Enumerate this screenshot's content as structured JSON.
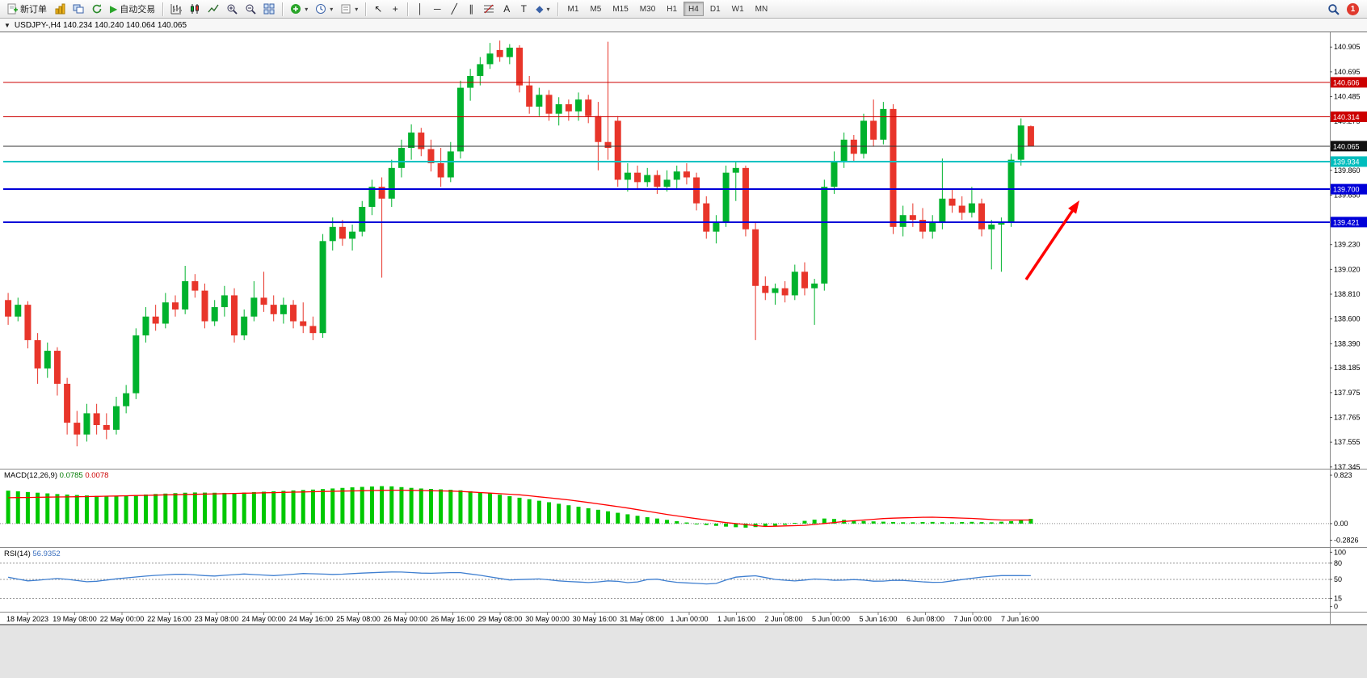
{
  "toolbar": {
    "new_order_label": "新订单",
    "auto_trading_label": "自动交易",
    "timeframes": [
      "M1",
      "M5",
      "M15",
      "M30",
      "H1",
      "H4",
      "D1",
      "W1",
      "MN"
    ],
    "active_timeframe": "H4",
    "notification_count": "1"
  },
  "chart": {
    "title": "USDJPY-,H4  140.234 140.240 140.064 140.065",
    "symbol": "USDJPY-",
    "period": "H4",
    "open": "140.234",
    "high": "140.240",
    "low": "140.064",
    "close": "140.065"
  },
  "colors": {
    "up": "#00b22d",
    "down": "#e8352a",
    "macd_hist": "#00c800",
    "macd_signal": "#ff0000",
    "rsi_line": "#3f7fd0",
    "axis_text": "#000000"
  },
  "chart_data": {
    "type": "candlestick",
    "symbol": "USDJPY-",
    "timeframe": "H4",
    "ylim": [
      137.33,
      141.03
    ],
    "price_ticks": [
      "140.905",
      "140.695",
      "140.485",
      "140.275",
      "139.860",
      "139.650",
      "139.230",
      "139.020",
      "138.810",
      "138.600",
      "138.390",
      "138.185",
      "137.975",
      "137.765",
      "137.555",
      "137.345"
    ],
    "x_labels": [
      "18 May 2023",
      "19 May 08:00",
      "22 May 00:00",
      "22 May 16:00",
      "23 May 08:00",
      "24 May 00:00",
      "24 May 16:00",
      "25 May 08:00",
      "26 May 00:00",
      "26 May 16:00",
      "29 May 08:00",
      "30 May 00:00",
      "30 May 16:00",
      "31 May 08:00",
      "1 Jun 00:00",
      "1 Jun 16:00",
      "2 Jun 08:00",
      "5 Jun 00:00",
      "5 Jun 16:00",
      "6 Jun 08:00",
      "7 Jun 00:00",
      "7 Jun 16:00"
    ],
    "candles": [
      [
        138.76,
        138.82,
        138.55,
        138.62
      ],
      [
        138.62,
        138.78,
        138.58,
        138.72
      ],
      [
        138.72,
        138.75,
        138.35,
        138.42
      ],
      [
        138.42,
        138.48,
        138.05,
        138.18
      ],
      [
        138.18,
        138.4,
        138.1,
        138.33
      ],
      [
        138.33,
        138.36,
        137.95,
        138.05
      ],
      [
        138.05,
        138.1,
        137.62,
        137.72
      ],
      [
        137.72,
        137.82,
        137.52,
        137.62
      ],
      [
        137.62,
        137.88,
        137.56,
        137.8
      ],
      [
        137.8,
        137.88,
        137.62,
        137.7
      ],
      [
        137.7,
        137.8,
        137.58,
        137.66
      ],
      [
        137.66,
        137.94,
        137.62,
        137.86
      ],
      [
        137.86,
        138.04,
        137.8,
        137.97
      ],
      [
        137.97,
        138.52,
        137.92,
        138.46
      ],
      [
        138.46,
        138.7,
        138.4,
        138.62
      ],
      [
        138.62,
        138.72,
        138.5,
        138.56
      ],
      [
        138.56,
        138.82,
        138.52,
        138.74
      ],
      [
        138.74,
        138.8,
        138.62,
        138.68
      ],
      [
        138.68,
        139.05,
        138.64,
        138.92
      ],
      [
        138.92,
        138.98,
        138.78,
        138.84
      ],
      [
        138.84,
        138.9,
        138.52,
        138.58
      ],
      [
        138.58,
        138.76,
        138.54,
        138.7
      ],
      [
        138.7,
        138.88,
        138.62,
        138.8
      ],
      [
        138.8,
        138.86,
        138.4,
        138.46
      ],
      [
        138.46,
        138.68,
        138.42,
        138.62
      ],
      [
        138.62,
        138.92,
        138.58,
        138.78
      ],
      [
        138.78,
        139.0,
        138.66,
        138.72
      ],
      [
        138.72,
        138.8,
        138.58,
        138.64
      ],
      [
        138.64,
        138.78,
        138.56,
        138.72
      ],
      [
        138.72,
        138.76,
        138.52,
        138.58
      ],
      [
        138.58,
        138.74,
        138.48,
        138.54
      ],
      [
        138.54,
        138.62,
        138.42,
        138.48
      ],
      [
        138.48,
        139.32,
        138.44,
        139.26
      ],
      [
        139.26,
        139.46,
        139.18,
        139.38
      ],
      [
        139.38,
        139.44,
        139.22,
        139.28
      ],
      [
        139.28,
        139.4,
        139.18,
        139.34
      ],
      [
        139.34,
        139.6,
        139.3,
        139.55
      ],
      [
        139.55,
        139.78,
        139.48,
        139.72
      ],
      [
        139.72,
        139.8,
        138.95,
        139.62
      ],
      [
        139.62,
        139.95,
        139.55,
        139.88
      ],
      [
        139.88,
        140.12,
        139.8,
        140.05
      ],
      [
        140.05,
        140.25,
        139.95,
        140.18
      ],
      [
        140.18,
        140.22,
        139.98,
        140.04
      ],
      [
        140.04,
        140.12,
        139.85,
        139.92
      ],
      [
        139.92,
        140.05,
        139.72,
        139.8
      ],
      [
        139.8,
        140.1,
        139.76,
        140.02
      ],
      [
        140.02,
        140.62,
        139.96,
        140.56
      ],
      [
        140.56,
        140.72,
        140.45,
        140.66
      ],
      [
        140.66,
        140.82,
        140.58,
        140.76
      ],
      [
        140.76,
        140.94,
        140.72,
        140.85
      ],
      [
        140.88,
        140.96,
        140.78,
        140.82
      ],
      [
        140.82,
        140.93,
        140.76,
        140.9
      ],
      [
        140.9,
        140.92,
        140.52,
        140.58
      ],
      [
        140.58,
        140.66,
        140.34,
        140.4
      ],
      [
        140.4,
        140.56,
        140.32,
        140.5
      ],
      [
        140.5,
        140.54,
        140.28,
        140.34
      ],
      [
        140.34,
        140.48,
        140.24,
        140.42
      ],
      [
        140.42,
        140.46,
        140.28,
        140.36
      ],
      [
        140.36,
        140.52,
        140.28,
        140.46
      ],
      [
        140.46,
        140.5,
        140.26,
        140.32
      ],
      [
        140.32,
        140.44,
        139.86,
        140.1
      ],
      [
        140.1,
        140.95,
        139.95,
        140.05
      ],
      [
        140.28,
        140.32,
        139.72,
        139.78
      ],
      [
        139.78,
        139.92,
        139.68,
        139.84
      ],
      [
        139.84,
        139.9,
        139.7,
        139.76
      ],
      [
        139.76,
        139.88,
        139.72,
        139.82
      ],
      [
        139.82,
        139.86,
        139.66,
        139.72
      ],
      [
        139.72,
        139.86,
        139.68,
        139.78
      ],
      [
        139.78,
        139.9,
        139.7,
        139.85
      ],
      [
        139.85,
        139.92,
        139.74,
        139.8
      ],
      [
        139.8,
        139.84,
        139.52,
        139.58
      ],
      [
        139.58,
        139.64,
        139.28,
        139.34
      ],
      [
        139.34,
        139.48,
        139.24,
        139.42
      ],
      [
        139.42,
        139.9,
        139.38,
        139.84
      ],
      [
        139.84,
        139.94,
        139.6,
        139.88
      ],
      [
        139.88,
        139.9,
        139.3,
        139.36
      ],
      [
        139.36,
        139.42,
        138.42,
        138.88
      ],
      [
        138.88,
        138.96,
        138.76,
        138.82
      ],
      [
        138.82,
        138.9,
        138.72,
        138.86
      ],
      [
        138.86,
        138.92,
        138.74,
        138.8
      ],
      [
        138.8,
        139.06,
        138.76,
        139.0
      ],
      [
        139.0,
        139.08,
        138.8,
        138.86
      ],
      [
        138.86,
        138.94,
        138.55,
        138.9
      ],
      [
        138.9,
        139.78,
        138.84,
        139.72
      ],
      [
        139.72,
        140.02,
        139.66,
        139.94
      ],
      [
        139.94,
        140.18,
        139.88,
        140.12
      ],
      [
        140.12,
        140.16,
        139.94,
        140.0
      ],
      [
        140.0,
        140.34,
        139.96,
        140.28
      ],
      [
        140.28,
        140.46,
        140.06,
        140.12
      ],
      [
        140.12,
        140.44,
        140.08,
        140.38
      ],
      [
        140.38,
        140.42,
        139.32,
        139.38
      ],
      [
        139.38,
        139.56,
        139.3,
        139.48
      ],
      [
        139.48,
        139.58,
        139.38,
        139.44
      ],
      [
        139.44,
        139.54,
        139.28,
        139.34
      ],
      [
        139.34,
        139.48,
        139.28,
        139.42
      ],
      [
        139.42,
        139.96,
        139.36,
        139.62
      ],
      [
        139.62,
        139.7,
        139.5,
        139.56
      ],
      [
        139.56,
        139.64,
        139.44,
        139.5
      ],
      [
        139.5,
        139.72,
        139.46,
        139.58
      ],
      [
        139.58,
        139.62,
        139.3,
        139.36
      ],
      [
        139.36,
        139.44,
        139.02,
        139.4
      ],
      [
        139.4,
        139.46,
        139.0,
        139.42
      ],
      [
        139.42,
        140.0,
        139.38,
        139.95
      ],
      [
        139.95,
        140.3,
        139.9,
        140.24
      ],
      [
        140.234,
        140.24,
        140.064,
        140.065
      ]
    ]
  },
  "lines": [
    {
      "name": "resistance-upper",
      "label": "140.606",
      "price": 140.606,
      "color": "#cc0000",
      "badge": "#cc0000",
      "text": "#ffffff",
      "width": 1
    },
    {
      "name": "resistance-lower",
      "label": "140.314",
      "price": 140.314,
      "color": "#cc0000",
      "badge": "#cc0000",
      "text": "#ffffff",
      "width": 1
    },
    {
      "name": "current-price",
      "label": "140.065",
      "price": 140.065,
      "color": "#333333",
      "badge": "#111111",
      "text": "#ffffff",
      "width": 1
    },
    {
      "name": "cyan-level",
      "label": "139.934",
      "price": 139.934,
      "color": "#00c2c2",
      "badge": "#00bdbd",
      "text": "#ffffff",
      "width": 2
    },
    {
      "name": "support-upper",
      "label": "139.700",
      "price": 139.7,
      "color": "#0000d8",
      "badge": "#0000d8",
      "text": "#ffffff",
      "width": 2
    },
    {
      "name": "support-lower",
      "label": "139.421",
      "price": 139.421,
      "color": "#0000d8",
      "badge": "#0000d8",
      "text": "#ffffff",
      "width": 2
    }
  ],
  "indicators": {
    "macd": {
      "label": "MACD(12,26,9)",
      "value_main": "0.0785",
      "value_signal": "0.0078",
      "axis": [
        "0.823",
        "0.00",
        "-0.2826"
      ],
      "vmax": 0.92,
      "vmin": -0.4,
      "hist_points": [
        [
          0,
          0.56
        ],
        [
          0.05,
          0.5
        ],
        [
          0.1,
          0.46
        ],
        [
          0.14,
          0.5
        ],
        [
          0.18,
          0.53
        ],
        [
          0.22,
          0.52
        ],
        [
          0.26,
          0.55
        ],
        [
          0.3,
          0.58
        ],
        [
          0.34,
          0.62
        ],
        [
          0.37,
          0.64
        ],
        [
          0.4,
          0.6
        ],
        [
          0.44,
          0.57
        ],
        [
          0.47,
          0.52
        ],
        [
          0.5,
          0.44
        ],
        [
          0.53,
          0.36
        ],
        [
          0.56,
          0.28
        ],
        [
          0.59,
          0.2
        ],
        [
          0.62,
          0.12
        ],
        [
          0.65,
          0.05
        ],
        [
          0.68,
          -0.02
        ],
        [
          0.7,
          -0.05
        ],
        [
          0.72,
          -0.07
        ],
        [
          0.74,
          -0.05
        ],
        [
          0.76,
          -0.02
        ],
        [
          0.78,
          0.05
        ],
        [
          0.8,
          0.09
        ],
        [
          0.82,
          0.06
        ],
        [
          0.84,
          0.04
        ],
        [
          0.86,
          0.03
        ],
        [
          0.88,
          0.02
        ],
        [
          0.9,
          0.03
        ],
        [
          0.92,
          0.02
        ],
        [
          0.94,
          0.03
        ],
        [
          0.96,
          0.02
        ],
        [
          0.98,
          0.04
        ],
        [
          1,
          0.08
        ]
      ],
      "signal_points": [
        [
          0,
          0.44
        ],
        [
          0.08,
          0.46
        ],
        [
          0.16,
          0.49
        ],
        [
          0.24,
          0.52
        ],
        [
          0.32,
          0.55
        ],
        [
          0.38,
          0.57
        ],
        [
          0.44,
          0.55
        ],
        [
          0.5,
          0.49
        ],
        [
          0.55,
          0.4
        ],
        [
          0.6,
          0.28
        ],
        [
          0.65,
          0.14
        ],
        [
          0.7,
          0.02
        ],
        [
          0.74,
          -0.05
        ],
        [
          0.78,
          -0.03
        ],
        [
          0.82,
          0.04
        ],
        [
          0.86,
          0.09
        ],
        [
          0.9,
          0.11
        ],
        [
          0.94,
          0.09
        ],
        [
          0.97,
          0.06
        ],
        [
          1,
          0.06
        ]
      ]
    },
    "rsi": {
      "label": "RSI(14)",
      "value": "56.9352",
      "axis": [
        "100",
        "80",
        "50",
        "15",
        "0"
      ],
      "levels": [
        80,
        50,
        15
      ],
      "points": [
        [
          0,
          54
        ],
        [
          0.02,
          47
        ],
        [
          0.05,
          52
        ],
        [
          0.08,
          45
        ],
        [
          0.11,
          52
        ],
        [
          0.14,
          57
        ],
        [
          0.17,
          60
        ],
        [
          0.2,
          56
        ],
        [
          0.23,
          60
        ],
        [
          0.26,
          57
        ],
        [
          0.29,
          61
        ],
        [
          0.32,
          59
        ],
        [
          0.35,
          62
        ],
        [
          0.38,
          64
        ],
        [
          0.41,
          61
        ],
        [
          0.44,
          63
        ],
        [
          0.46,
          58
        ],
        [
          0.49,
          49
        ],
        [
          0.52,
          51
        ],
        [
          0.54,
          47
        ],
        [
          0.57,
          44
        ],
        [
          0.59,
          48
        ],
        [
          0.61,
          43
        ],
        [
          0.63,
          52
        ],
        [
          0.65,
          45
        ],
        [
          0.67,
          43
        ],
        [
          0.69,
          41
        ],
        [
          0.71,
          54
        ],
        [
          0.73,
          57
        ],
        [
          0.75,
          50
        ],
        [
          0.77,
          47
        ],
        [
          0.79,
          51
        ],
        [
          0.81,
          48
        ],
        [
          0.83,
          50
        ],
        [
          0.85,
          46
        ],
        [
          0.87,
          49
        ],
        [
          0.89,
          46
        ],
        [
          0.91,
          44
        ],
        [
          0.93,
          49
        ],
        [
          0.95,
          54
        ],
        [
          0.97,
          57
        ],
        [
          1,
          56.9
        ]
      ]
    }
  },
  "annotation_arrow": {
    "from": [
      1270,
      306
    ],
    "to": [
      1336,
      208
    ],
    "color": "#ff0000"
  }
}
